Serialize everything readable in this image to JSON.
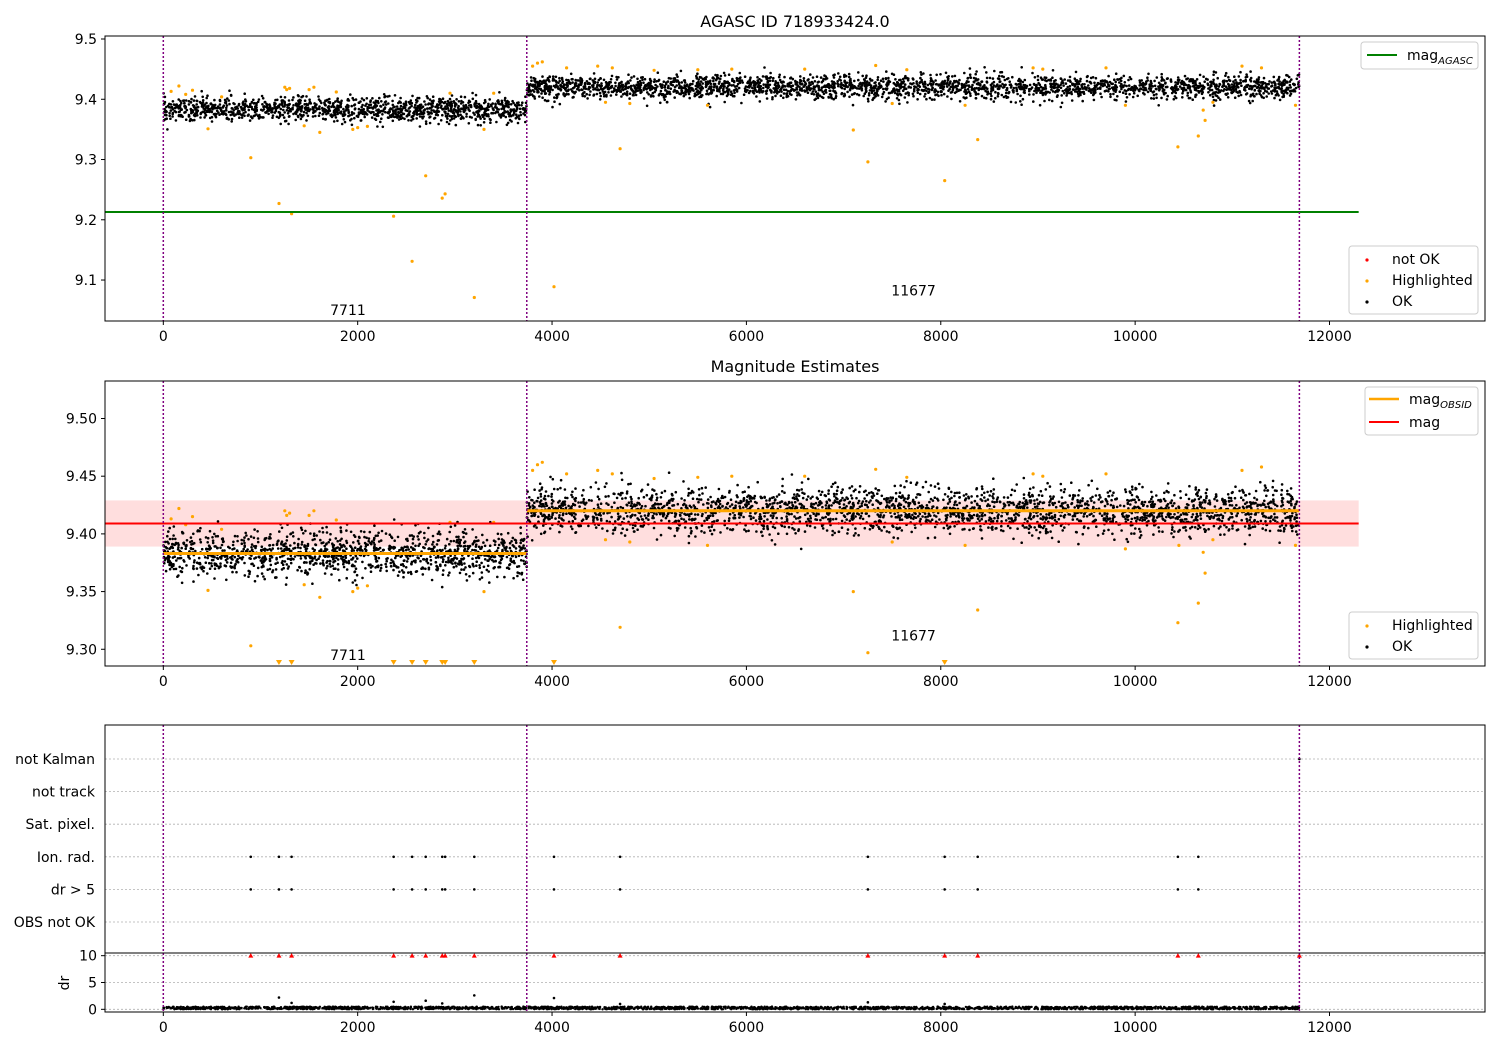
{
  "colors": {
    "ok": "#000000",
    "highlighted": "#ffa500",
    "not_ok": "#ff0000",
    "mag_agasc": "#008000",
    "mag": "#ff0000",
    "mag_obsid": "#ffa500",
    "mag_band": "#ffdede",
    "obsid_divider": "#800080",
    "gridline": "#b0b0b0"
  },
  "chart_data": [
    {
      "type": "scatter",
      "title": "AGASC ID 718933424.0",
      "xlim": [
        -600,
        13600
      ],
      "ylim": [
        9.032,
        9.505
      ],
      "xticks": [
        0,
        2000,
        4000,
        6000,
        8000,
        10000,
        12000
      ],
      "xtick_labels": [
        "0",
        "2000",
        "4000",
        "6000",
        "8000",
        "10000",
        "12000"
      ],
      "yticks": [
        9.1,
        9.2,
        9.3,
        9.4,
        9.5
      ],
      "ytick_labels": [
        "9.1",
        "9.2",
        "9.3",
        "9.4",
        "9.5"
      ],
      "obsid_boundaries": [
        0,
        3740,
        11690
      ],
      "obsid_labels": [
        {
          "text": "7711",
          "x": 1900,
          "y": 9.05
        },
        {
          "text": "11677",
          "x": 7720,
          "y": 9.083
        }
      ],
      "lines": [
        {
          "name": "mag_AGASC",
          "label_main": "mag",
          "label_sub": "AGASC",
          "y": 9.213,
          "x_range": [
            -600,
            12300
          ],
          "color_key": "mag_agasc"
        }
      ],
      "ok_segments": [
        {
          "x_range": [
            0,
            3740
          ],
          "center": 9.383,
          "spread": 0.022,
          "count": 1300
        },
        {
          "x_range": [
            3740,
            11690
          ],
          "center": 9.42,
          "spread": 0.022,
          "count": 2600
        }
      ],
      "highlighted": [
        {
          "x": 80,
          "y": 9.413
        },
        {
          "x": 160,
          "y": 9.422
        },
        {
          "x": 230,
          "y": 9.408
        },
        {
          "x": 300,
          "y": 9.415
        },
        {
          "x": 460,
          "y": 9.351
        },
        {
          "x": 600,
          "y": 9.404
        },
        {
          "x": 900,
          "y": 9.303
        },
        {
          "x": 1190,
          "y": 9.227
        },
        {
          "x": 1250,
          "y": 9.42
        },
        {
          "x": 1270,
          "y": 9.416
        },
        {
          "x": 1300,
          "y": 9.418
        },
        {
          "x": 1320,
          "y": 9.21
        },
        {
          "x": 1450,
          "y": 9.356
        },
        {
          "x": 1500,
          "y": 9.416
        },
        {
          "x": 1550,
          "y": 9.42
        },
        {
          "x": 1610,
          "y": 9.345
        },
        {
          "x": 1780,
          "y": 9.412
        },
        {
          "x": 1950,
          "y": 9.35
        },
        {
          "x": 2000,
          "y": 9.353
        },
        {
          "x": 2100,
          "y": 9.355
        },
        {
          "x": 2370,
          "y": 9.206
        },
        {
          "x": 2560,
          "y": 9.131
        },
        {
          "x": 2700,
          "y": 9.273
        },
        {
          "x": 2870,
          "y": 9.236
        },
        {
          "x": 2900,
          "y": 9.243
        },
        {
          "x": 2950,
          "y": 9.41
        },
        {
          "x": 3200,
          "y": 9.071
        },
        {
          "x": 3300,
          "y": 9.35
        },
        {
          "x": 3400,
          "y": 9.41
        },
        {
          "x": 3800,
          "y": 9.455
        },
        {
          "x": 3850,
          "y": 9.46
        },
        {
          "x": 3900,
          "y": 9.462
        },
        {
          "x": 4020,
          "y": 9.089
        },
        {
          "x": 4150,
          "y": 9.452
        },
        {
          "x": 4470,
          "y": 9.455
        },
        {
          "x": 4550,
          "y": 9.395
        },
        {
          "x": 4620,
          "y": 9.452
        },
        {
          "x": 4700,
          "y": 9.318
        },
        {
          "x": 4800,
          "y": 9.393
        },
        {
          "x": 5050,
          "y": 9.448
        },
        {
          "x": 5500,
          "y": 9.449
        },
        {
          "x": 5600,
          "y": 9.39
        },
        {
          "x": 5850,
          "y": 9.45
        },
        {
          "x": 6600,
          "y": 9.45
        },
        {
          "x": 7100,
          "y": 9.349
        },
        {
          "x": 7250,
          "y": 9.296
        },
        {
          "x": 7330,
          "y": 9.456
        },
        {
          "x": 7500,
          "y": 9.393
        },
        {
          "x": 7650,
          "y": 9.449
        },
        {
          "x": 8040,
          "y": 9.265
        },
        {
          "x": 8250,
          "y": 9.39
        },
        {
          "x": 8380,
          "y": 9.333
        },
        {
          "x": 8950,
          "y": 9.452
        },
        {
          "x": 9050,
          "y": 9.45
        },
        {
          "x": 9700,
          "y": 9.452
        },
        {
          "x": 9900,
          "y": 9.39
        },
        {
          "x": 10440,
          "y": 9.321
        },
        {
          "x": 10650,
          "y": 9.339
        },
        {
          "x": 10700,
          "y": 9.382
        },
        {
          "x": 10720,
          "y": 9.365
        },
        {
          "x": 10800,
          "y": 9.395
        },
        {
          "x": 11100,
          "y": 9.455
        },
        {
          "x": 11300,
          "y": 9.452
        },
        {
          "x": 11650,
          "y": 9.39
        }
      ],
      "legends": [
        {
          "placement": "upper right",
          "entries": [
            {
              "label_main": "mag",
              "label_sub": "AGASC",
              "kind": "line",
              "color_key": "mag_agasc"
            }
          ]
        },
        {
          "placement": "lower right",
          "entries": [
            {
              "label_main": "not OK",
              "kind": "marker",
              "color_key": "not_ok"
            },
            {
              "label_main": "Highlighted",
              "kind": "marker",
              "color_key": "highlighted"
            },
            {
              "label_main": "OK",
              "kind": "marker",
              "color_key": "ok"
            }
          ]
        }
      ]
    },
    {
      "type": "scatter",
      "title": "Magnitude Estimates",
      "xlim": [
        -600,
        13600
      ],
      "ylim": [
        9.2855,
        9.5325
      ],
      "xticks": [
        0,
        2000,
        4000,
        6000,
        8000,
        10000,
        12000
      ],
      "xtick_labels": [
        "0",
        "2000",
        "4000",
        "6000",
        "8000",
        "10000",
        "12000"
      ],
      "yticks": [
        9.3,
        9.35,
        9.4,
        9.45,
        9.5
      ],
      "ytick_labels": [
        "9.30",
        "9.35",
        "9.40",
        "9.45",
        "9.50"
      ],
      "obsid_boundaries": [
        0,
        3740,
        11690
      ],
      "obsid_labels": [
        {
          "text": "7711",
          "x": 1900,
          "y": 9.295
        },
        {
          "text": "11677",
          "x": 7720,
          "y": 9.312
        }
      ],
      "mag": 9.409,
      "mag_band": [
        9.389,
        9.429
      ],
      "mag_band_x_range": [
        -600,
        12300
      ],
      "mag_obsid": [
        {
          "x_range": [
            0,
            3740
          ],
          "y": 9.383
        },
        {
          "x_range": [
            3740,
            11690
          ],
          "y": 9.42
        }
      ],
      "ok_segments": [
        {
          "x_range": [
            0,
            3740
          ],
          "center": 9.383,
          "spread": 0.022,
          "count": 1300
        },
        {
          "x_range": [
            3740,
            11690
          ],
          "center": 9.42,
          "spread": 0.022,
          "count": 2600
        }
      ],
      "highlighted": [
        {
          "x": 80,
          "y": 9.413
        },
        {
          "x": 160,
          "y": 9.422
        },
        {
          "x": 230,
          "y": 9.408
        },
        {
          "x": 300,
          "y": 9.415
        },
        {
          "x": 460,
          "y": 9.351
        },
        {
          "x": 600,
          "y": 9.404
        },
        {
          "x": 900,
          "y": 9.303
        },
        {
          "x": 1250,
          "y": 9.42
        },
        {
          "x": 1270,
          "y": 9.416
        },
        {
          "x": 1300,
          "y": 9.418
        },
        {
          "x": 1450,
          "y": 9.356
        },
        {
          "x": 1500,
          "y": 9.416
        },
        {
          "x": 1550,
          "y": 9.42
        },
        {
          "x": 1610,
          "y": 9.345
        },
        {
          "x": 1780,
          "y": 9.412
        },
        {
          "x": 1950,
          "y": 9.35
        },
        {
          "x": 2000,
          "y": 9.353
        },
        {
          "x": 2100,
          "y": 9.355
        },
        {
          "x": 2950,
          "y": 9.41
        },
        {
          "x": 3300,
          "y": 9.35
        },
        {
          "x": 3400,
          "y": 9.41
        },
        {
          "x": 3800,
          "y": 9.455
        },
        {
          "x": 3850,
          "y": 9.46
        },
        {
          "x": 3900,
          "y": 9.462
        },
        {
          "x": 4150,
          "y": 9.452
        },
        {
          "x": 4470,
          "y": 9.455
        },
        {
          "x": 4550,
          "y": 9.395
        },
        {
          "x": 4620,
          "y": 9.452
        },
        {
          "x": 4700,
          "y": 9.319
        },
        {
          "x": 4800,
          "y": 9.393
        },
        {
          "x": 5050,
          "y": 9.448
        },
        {
          "x": 5500,
          "y": 9.449
        },
        {
          "x": 5600,
          "y": 9.39
        },
        {
          "x": 5850,
          "y": 9.45
        },
        {
          "x": 6600,
          "y": 9.45
        },
        {
          "x": 7100,
          "y": 9.35
        },
        {
          "x": 7250,
          "y": 9.297
        },
        {
          "x": 7330,
          "y": 9.456
        },
        {
          "x": 7500,
          "y": 9.393
        },
        {
          "x": 7650,
          "y": 9.449
        },
        {
          "x": 8250,
          "y": 9.39
        },
        {
          "x": 8380,
          "y": 9.334
        },
        {
          "x": 8950,
          "y": 9.452
        },
        {
          "x": 9050,
          "y": 9.45
        },
        {
          "x": 9700,
          "y": 9.452
        },
        {
          "x": 9900,
          "y": 9.387
        },
        {
          "x": 10440,
          "y": 9.323
        },
        {
          "x": 10450,
          "y": 9.39
        },
        {
          "x": 10650,
          "y": 9.34
        },
        {
          "x": 10700,
          "y": 9.384
        },
        {
          "x": 10720,
          "y": 9.366
        },
        {
          "x": 10800,
          "y": 9.395
        },
        {
          "x": 11100,
          "y": 9.455
        },
        {
          "x": 11300,
          "y": 9.458
        },
        {
          "x": 11650,
          "y": 9.39
        }
      ],
      "off_scale_low_x": [
        1190,
        1320,
        2370,
        2560,
        2700,
        2870,
        2900,
        3200,
        4020,
        8040
      ],
      "legends": [
        {
          "placement": "upper right",
          "entries": [
            {
              "label_main": "mag",
              "label_sub": "OBSID",
              "kind": "line",
              "color_key": "mag_obsid"
            },
            {
              "label_main": "mag",
              "kind": "line",
              "color_key": "mag"
            }
          ]
        },
        {
          "placement": "lower right",
          "entries": [
            {
              "label_main": "Highlighted",
              "kind": "marker",
              "color_key": "highlighted"
            },
            {
              "label_main": "OK",
              "kind": "marker",
              "color_key": "ok"
            }
          ]
        }
      ]
    },
    {
      "type": "scatter",
      "title": "",
      "xlim": [
        -600,
        13600
      ],
      "xticks": [
        0,
        2000,
        4000,
        6000,
        8000,
        10000,
        12000
      ],
      "xtick_labels": [
        "0",
        "2000",
        "4000",
        "6000",
        "8000",
        "10000",
        "12000"
      ],
      "obsid_boundaries": [
        0,
        3740,
        11690
      ],
      "flag_rows": [
        "not Kalman",
        "not track",
        "Sat. pixel.",
        "Ion. rad.",
        "dr > 5",
        "OBS not OK"
      ],
      "flag_points": [
        {
          "row": "Ion. rad.",
          "x": [
            900,
            1190,
            1320,
            2370,
            2560,
            2700,
            2870,
            2900,
            3200,
            4020,
            4700,
            7250,
            8040,
            8380,
            10440,
            10650
          ]
        },
        {
          "row": "dr > 5",
          "x": [
            900,
            1190,
            1320,
            2370,
            2560,
            2700,
            2870,
            2900,
            3200,
            4020,
            4700,
            7250,
            8040,
            8380,
            10440,
            10650
          ]
        },
        {
          "row": "not Kalman",
          "x": [
            11690
          ]
        }
      ],
      "dr": {
        "ylabel": "dr",
        "ylim": [
          -0.5,
          10.5
        ],
        "yticks": [
          0,
          5,
          10
        ],
        "ytick_labels": [
          "0",
          "5",
          "10"
        ],
        "clip_value": 10,
        "clipped_x": [
          900,
          1190,
          1320,
          2370,
          2560,
          2700,
          2870,
          2900,
          3200,
          4020,
          4700,
          7250,
          8040,
          8380,
          10440,
          10650,
          11690
        ],
        "typical_range": [
          0,
          0.5
        ],
        "count": 2400,
        "outliers": [
          {
            "x": 1190,
            "y": 2.2
          },
          {
            "x": 1320,
            "y": 1.2
          },
          {
            "x": 2370,
            "y": 1.4
          },
          {
            "x": 2700,
            "y": 1.6
          },
          {
            "x": 2870,
            "y": 1.1
          },
          {
            "x": 3200,
            "y": 2.6
          },
          {
            "x": 4020,
            "y": 2.1
          },
          {
            "x": 4700,
            "y": 1.0
          },
          {
            "x": 7250,
            "y": 1.3
          },
          {
            "x": 8040,
            "y": 1.0
          }
        ]
      }
    }
  ]
}
